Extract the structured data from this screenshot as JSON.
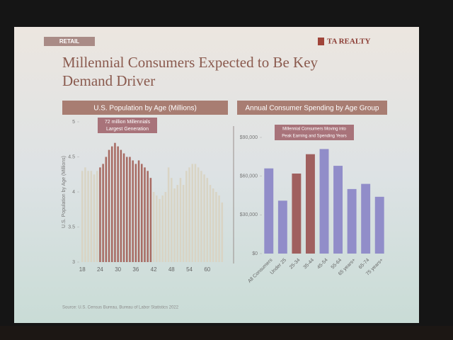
{
  "slide": {
    "tag": "RETAIL",
    "brand": "TA REALTY",
    "title": [
      "Millennial Consumers Expected to Be Key",
      "Demand Driver"
    ],
    "source": "Source: U.S. Census Bureau, Bureau of Labor Statistics 2022"
  },
  "chart_data": [
    {
      "type": "bar",
      "title": "U.S. Population by Age (Millions)",
      "y_label": "U.S. Population by Age (Millions)",
      "annotation": [
        "72 million Millennials",
        "Largest Generation"
      ],
      "x": [
        18,
        19,
        20,
        21,
        22,
        23,
        24,
        25,
        26,
        27,
        28,
        29,
        30,
        31,
        32,
        33,
        34,
        35,
        36,
        37,
        38,
        39,
        40,
        41,
        42,
        43,
        44,
        45,
        46,
        47,
        48,
        49,
        50,
        51,
        52,
        53,
        54,
        55,
        56,
        57,
        58,
        59,
        60,
        61,
        62,
        63,
        64,
        65
      ],
      "values": [
        4.3,
        4.35,
        4.3,
        4.3,
        4.25,
        4.3,
        4.35,
        4.4,
        4.5,
        4.6,
        4.65,
        4.7,
        4.65,
        4.6,
        4.55,
        4.5,
        4.5,
        4.45,
        4.4,
        4.45,
        4.4,
        4.35,
        4.3,
        4.2,
        4.0,
        3.95,
        3.9,
        3.95,
        4.0,
        4.35,
        4.2,
        4.05,
        4.1,
        4.2,
        4.1,
        4.3,
        4.35,
        4.4,
        4.4,
        4.35,
        4.3,
        4.25,
        4.2,
        4.1,
        4.05,
        4.0,
        3.95,
        3.85
      ],
      "colors": [
        "#d9d4c4",
        "#d9d4c4",
        "#d9d4c4",
        "#d9d4c4",
        "#d9d4c4",
        "#d9d4c4",
        "#a86b63",
        "#a86b63",
        "#a86b63",
        "#a86b63",
        "#a86b63",
        "#a86b63",
        "#a86b63",
        "#a86b63",
        "#a86b63",
        "#a86b63",
        "#a86b63",
        "#a86b63",
        "#a86b63",
        "#a86b63",
        "#a86b63",
        "#a86b63",
        "#a86b63",
        "#a86b63",
        "#d9d4c4",
        "#d9d4c4",
        "#d9d4c4",
        "#d9d4c4",
        "#d9d4c4",
        "#d9d4c4",
        "#d9d4c4",
        "#d9d4c4",
        "#d9d4c4",
        "#d9d4c4",
        "#d9d4c4",
        "#d9d4c4",
        "#d9d4c4",
        "#d9d4c4",
        "#d9d4c4",
        "#d9d4c4",
        "#d9d4c4",
        "#d9d4c4",
        "#d9d4c4",
        "#d9d4c4",
        "#d9d4c4",
        "#d9d4c4",
        "#d9d4c4",
        "#d9d4c4"
      ],
      "xlim": [
        17,
        66
      ],
      "xticks": [
        18,
        24,
        30,
        36,
        42,
        48,
        54,
        60
      ],
      "ylim": [
        3,
        5
      ],
      "yticks": [
        3,
        3.5,
        4,
        4.5,
        5
      ]
    },
    {
      "type": "bar",
      "title": "Annual Consumer Spending by Age Group",
      "annotation": [
        "Millennial Consumers Moving into",
        "Peak Earning and Spending Years"
      ],
      "categories": [
        "All Consumers",
        "Under 25",
        "25-34",
        "35-44",
        "45-54",
        "55-64",
        "65 years+",
        "65-74",
        "75 years+"
      ],
      "values": [
        66000,
        41000,
        62000,
        77000,
        81000,
        68000,
        50000,
        54000,
        44000
      ],
      "colors": [
        "#918dc9",
        "#918dc9",
        "#a0605f",
        "#a0605f",
        "#918dc9",
        "#918dc9",
        "#918dc9",
        "#918dc9",
        "#918dc9"
      ],
      "ylim": [
        0,
        90000
      ],
      "yticks": [
        {
          "value": 0,
          "label": "$0"
        },
        {
          "value": 30000,
          "label": "$30,000"
        },
        {
          "value": 60000,
          "label": "$60,000"
        },
        {
          "value": 90000,
          "label": "$90,000"
        }
      ]
    }
  ]
}
